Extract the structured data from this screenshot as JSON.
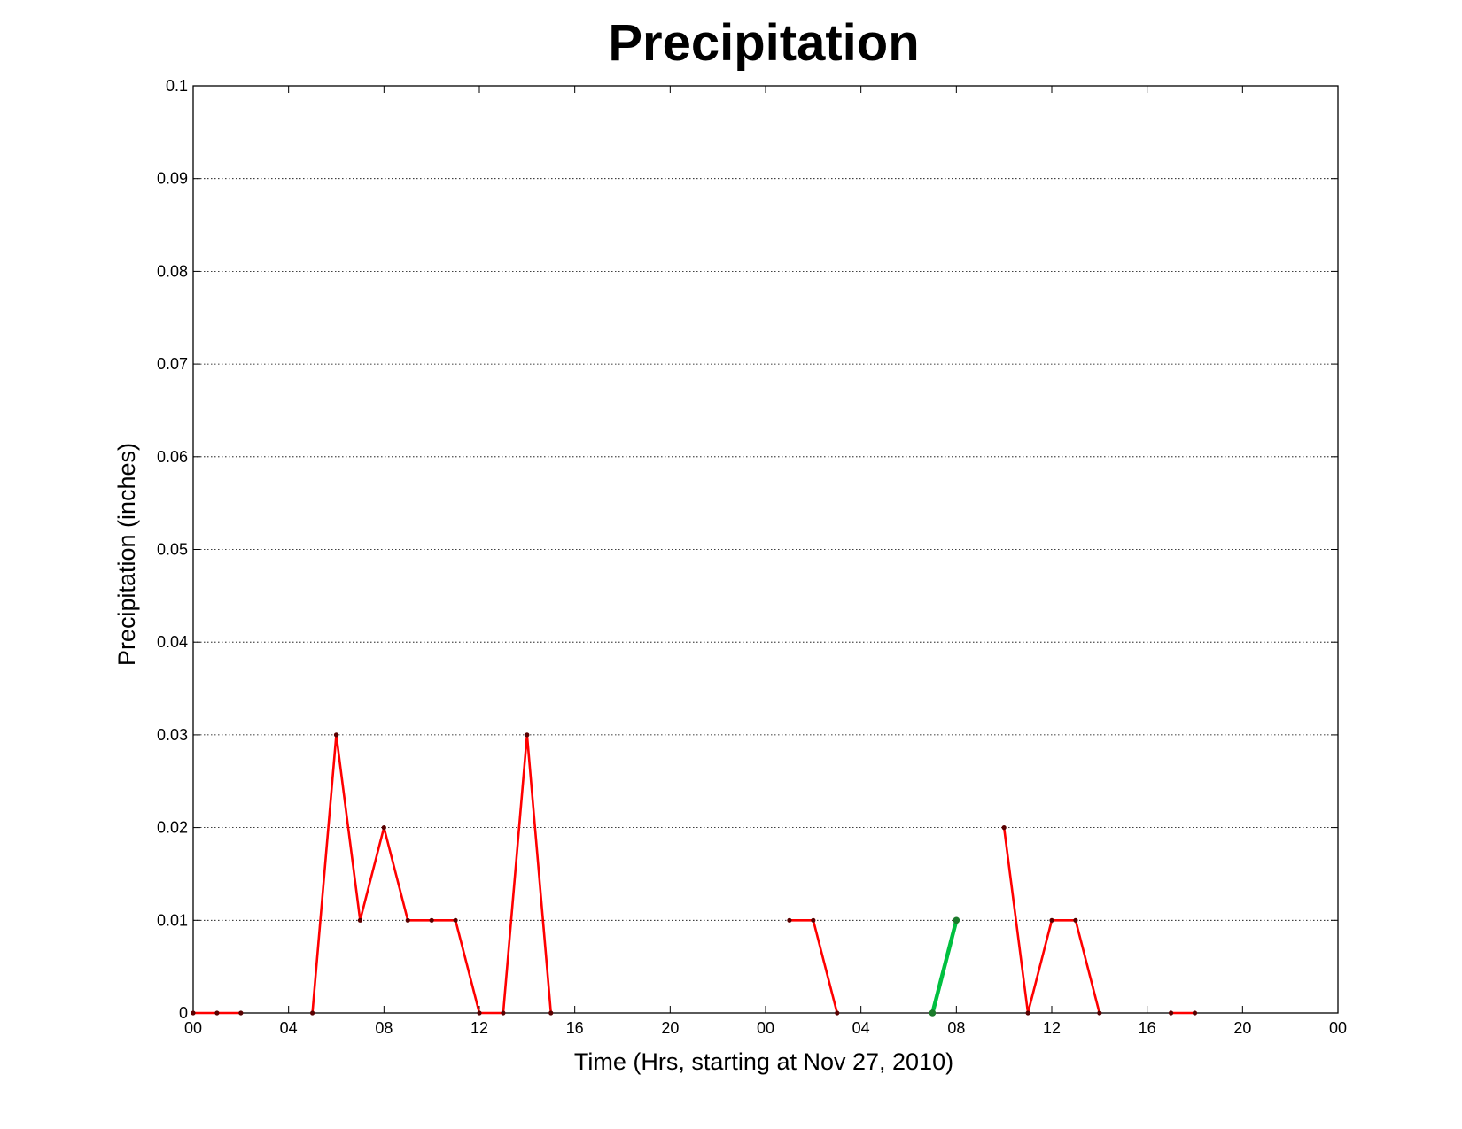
{
  "chart_data": {
    "type": "line",
    "title": "Precipitation",
    "xlabel": "Time (Hrs, starting at Nov 27, 2010)",
    "ylabel": "Precipitation (inches)",
    "xlim": [
      0,
      48
    ],
    "ylim": [
      0,
      0.1
    ],
    "grid": true,
    "x_ticks": [
      {
        "value": 0,
        "label": "00"
      },
      {
        "value": 4,
        "label": "04"
      },
      {
        "value": 8,
        "label": "08"
      },
      {
        "value": 12,
        "label": "12"
      },
      {
        "value": 16,
        "label": "16"
      },
      {
        "value": 20,
        "label": "20"
      },
      {
        "value": 24,
        "label": "00"
      },
      {
        "value": 28,
        "label": "04"
      },
      {
        "value": 32,
        "label": "08"
      },
      {
        "value": 36,
        "label": "12"
      },
      {
        "value": 40,
        "label": "16"
      },
      {
        "value": 44,
        "label": "20"
      },
      {
        "value": 48,
        "label": "00"
      }
    ],
    "y_ticks": [
      {
        "value": 0,
        "label": "0"
      },
      {
        "value": 0.01,
        "label": "0.01"
      },
      {
        "value": 0.02,
        "label": "0.02"
      },
      {
        "value": 0.03,
        "label": "0.03"
      },
      {
        "value": 0.04,
        "label": "0.04"
      },
      {
        "value": 0.05,
        "label": "0.05"
      },
      {
        "value": 0.06,
        "label": "0.06"
      },
      {
        "value": 0.07,
        "label": "0.07"
      },
      {
        "value": 0.08,
        "label": "0.08"
      },
      {
        "value": 0.09,
        "label": "0.09"
      },
      {
        "value": 0.1,
        "label": "0.1"
      }
    ],
    "series": [
      {
        "color": "#ff0000",
        "segments": [
          [
            [
              0,
              0
            ],
            [
              1,
              0
            ],
            [
              2,
              0
            ]
          ],
          [
            [
              5,
              0
            ],
            [
              6,
              0.03
            ],
            [
              7,
              0.01
            ],
            [
              8,
              0.02
            ],
            [
              9,
              0.01
            ],
            [
              10,
              0.01
            ],
            [
              11,
              0.01
            ],
            [
              12,
              0
            ],
            [
              13,
              0
            ],
            [
              14,
              0.03
            ],
            [
              15,
              0
            ]
          ],
          [
            [
              25,
              0.01
            ],
            [
              26,
              0.01
            ],
            [
              27,
              0
            ]
          ],
          [
            [
              34,
              0.02
            ],
            [
              35,
              0
            ],
            [
              36,
              0.01
            ],
            [
              37,
              0.01
            ],
            [
              38,
              0
            ]
          ],
          [
            [
              41,
              0
            ],
            [
              42,
              0
            ]
          ]
        ]
      },
      {
        "color": "#00c040",
        "segments": [
          [
            [
              31,
              0
            ],
            [
              32,
              0.01
            ]
          ]
        ]
      }
    ]
  }
}
